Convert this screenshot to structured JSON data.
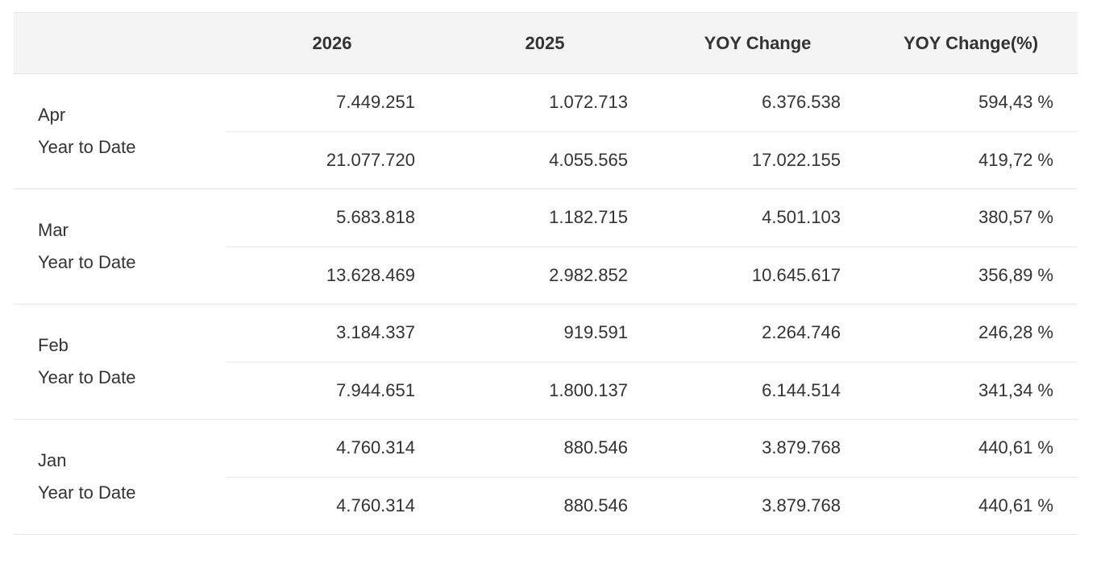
{
  "table": {
    "headers": [
      "",
      "2026",
      "2025",
      "YOY Change",
      "YOY Change(%)"
    ],
    "groups": [
      {
        "month": "Apr",
        "sublabel": "Year to Date",
        "rows": [
          [
            "7.449.251",
            "1.072.713",
            "6.376.538",
            "594,43 %"
          ],
          [
            "21.077.720",
            "4.055.565",
            "17.022.155",
            "419,72 %"
          ]
        ]
      },
      {
        "month": "Mar",
        "sublabel": "Year to Date",
        "rows": [
          [
            "5.683.818",
            "1.182.715",
            "4.501.103",
            "380,57 %"
          ],
          [
            "13.628.469",
            "2.982.852",
            "10.645.617",
            "356,89 %"
          ]
        ]
      },
      {
        "month": "Feb",
        "sublabel": "Year to Date",
        "rows": [
          [
            "3.184.337",
            "919.591",
            "2.264.746",
            "246,28 %"
          ],
          [
            "7.944.651",
            "1.800.137",
            "6.144.514",
            "341,34 %"
          ]
        ]
      },
      {
        "month": "Jan",
        "sublabel": "Year to Date",
        "rows": [
          [
            "4.760.314",
            "880.546",
            "3.879.768",
            "440,61 %"
          ],
          [
            "4.760.314",
            "880.546",
            "3.879.768",
            "440,61 %"
          ]
        ]
      }
    ]
  }
}
